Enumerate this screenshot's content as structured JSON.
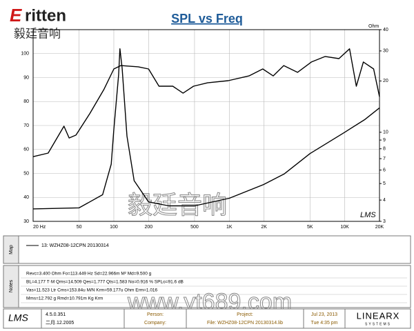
{
  "header": {
    "logo_initial": "E",
    "logo": "ritten",
    "logo_cn": "毅廷音响"
  },
  "chart_data": {
    "type": "line",
    "title": "SPL vs Freq",
    "y2_label": "Ohm",
    "watermark": "LMS",
    "xscale": "log",
    "y2scale": "log",
    "grid": true,
    "xlim": [
      20,
      20000
    ],
    "xticks": [
      {
        "value": 20,
        "label": "20 Hz"
      },
      50,
      100,
      200,
      500,
      {
        "value": 1000,
        "label": "1K"
      },
      {
        "value": 2000,
        "label": "2K"
      },
      {
        "value": 5000,
        "label": "5K"
      },
      {
        "value": 10000,
        "label": "10K"
      },
      {
        "value": 20000,
        "label": "20K"
      }
    ],
    "ylim": [
      30,
      110
    ],
    "yticks": [
      30,
      40,
      50,
      60,
      70,
      80,
      90,
      100
    ],
    "y2lim": [
      3,
      40
    ],
    "y2ticks": [
      3,
      4,
      5,
      6,
      7,
      8,
      9,
      10,
      20,
      30,
      40
    ],
    "series": [
      {
        "color": "#000000",
        "x": [
          20,
          27,
          37,
          41,
          47,
          62,
          82,
          100,
          115,
          163,
          200,
          246,
          324,
          398,
          490,
          648,
          978,
          1480,
          1950,
          2400,
          2960,
          3900,
          5140,
          6770,
          8900,
          11000,
          12600,
          14500,
          17800,
          20000
        ],
        "values": [
          57,
          58.5,
          69.7,
          64.8,
          66,
          75,
          85,
          93.6,
          95,
          94.5,
          93.6,
          86.4,
          86.4,
          83.5,
          86.4,
          87.8,
          88.7,
          90.7,
          93.6,
          90.7,
          95,
          92.2,
          96.5,
          98.8,
          97.9,
          102,
          86.4,
          96.5,
          93.6,
          82
        ]
      },
      {
        "color": "#000000",
        "axis": "y2",
        "x": [
          20,
          50,
          80,
          95,
          100,
          110,
          113,
          118,
          130,
          150,
          200,
          300,
          500,
          1000,
          2000,
          3000,
          5000,
          10000,
          15000,
          20000
        ],
        "values": [
          3.55,
          3.6,
          4.3,
          6.5,
          10.4,
          21.7,
          30.9,
          23.8,
          9.5,
          5.2,
          3.9,
          3.7,
          3.7,
          4.1,
          4.95,
          5.7,
          7.5,
          10,
          11.9,
          13.9
        ]
      }
    ]
  },
  "watermark": {
    "cn": "毅廷音响",
    "url": "www.yt689.com"
  },
  "map": {
    "label": "Map",
    "entry": "13: WZHZ08-12CPN   20130314"
  },
  "notes": {
    "label": "Notes",
    "lines": [
      "Revc=3.400 Ohm  Fo=113.449 Hz  Sd=22.966m M²  Md=9.500 g",
      "BL=4.177 T·M  Qms=14.509  Qes=1.777  Qts=1.583  No=0.916 %  SPLo=91.6 dB",
      "Vas=11.523 Ltr  Cms=153.84u M/N  Krm=59.177u Ohm  Erm=1.016",
      "Mms=12.792 g  Rmd=10.791m Kg  Krm"
    ]
  },
  "footer": {
    "lms": "LMS",
    "version": "4.5.0.351",
    "build_date": "二月.12.2005",
    "person": "Person:",
    "company": "Company:",
    "project": "Project:",
    "file": "File: WZHZ08-12CPN 20130314.lib",
    "date": "Jul 23, 2013",
    "time": "Tue 4:35 pm",
    "brand": "LINEARX",
    "brand_sub": "SYSTEMS"
  }
}
